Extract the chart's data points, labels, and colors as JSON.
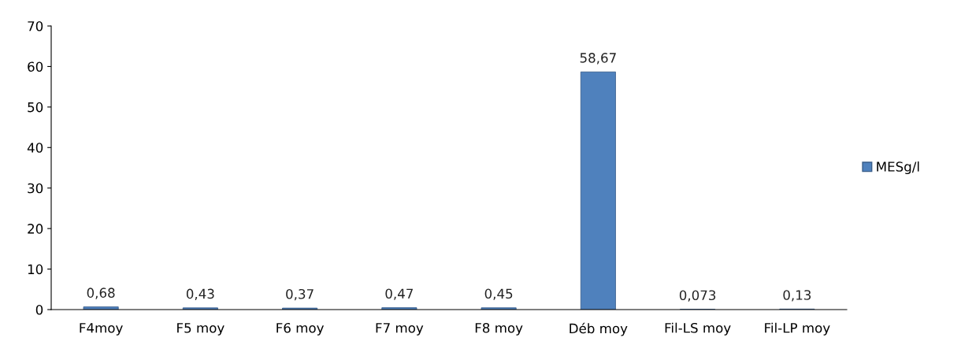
{
  "chart_data": {
    "type": "bar",
    "categories": [
      "F4moy",
      "F5 moy",
      "F6 moy",
      "F7 moy",
      "F8 moy",
      "Déb moy",
      "Fil-LS moy",
      "Fil-LP moy"
    ],
    "series": [
      {
        "name": "MESg/l",
        "color": "#4f81bd",
        "values": [
          0.68,
          0.43,
          0.37,
          0.47,
          0.45,
          58.67,
          0.073,
          0.13
        ],
        "value_labels": [
          "0,68",
          "0,43",
          "0,37",
          "0,47",
          "0,45",
          "58,67",
          "0,073",
          "0,13"
        ]
      }
    ],
    "ylim": [
      0,
      70
    ],
    "yticks": [
      0,
      10,
      20,
      30,
      40,
      50,
      60,
      70
    ],
    "grid": false,
    "legend": "right"
  }
}
